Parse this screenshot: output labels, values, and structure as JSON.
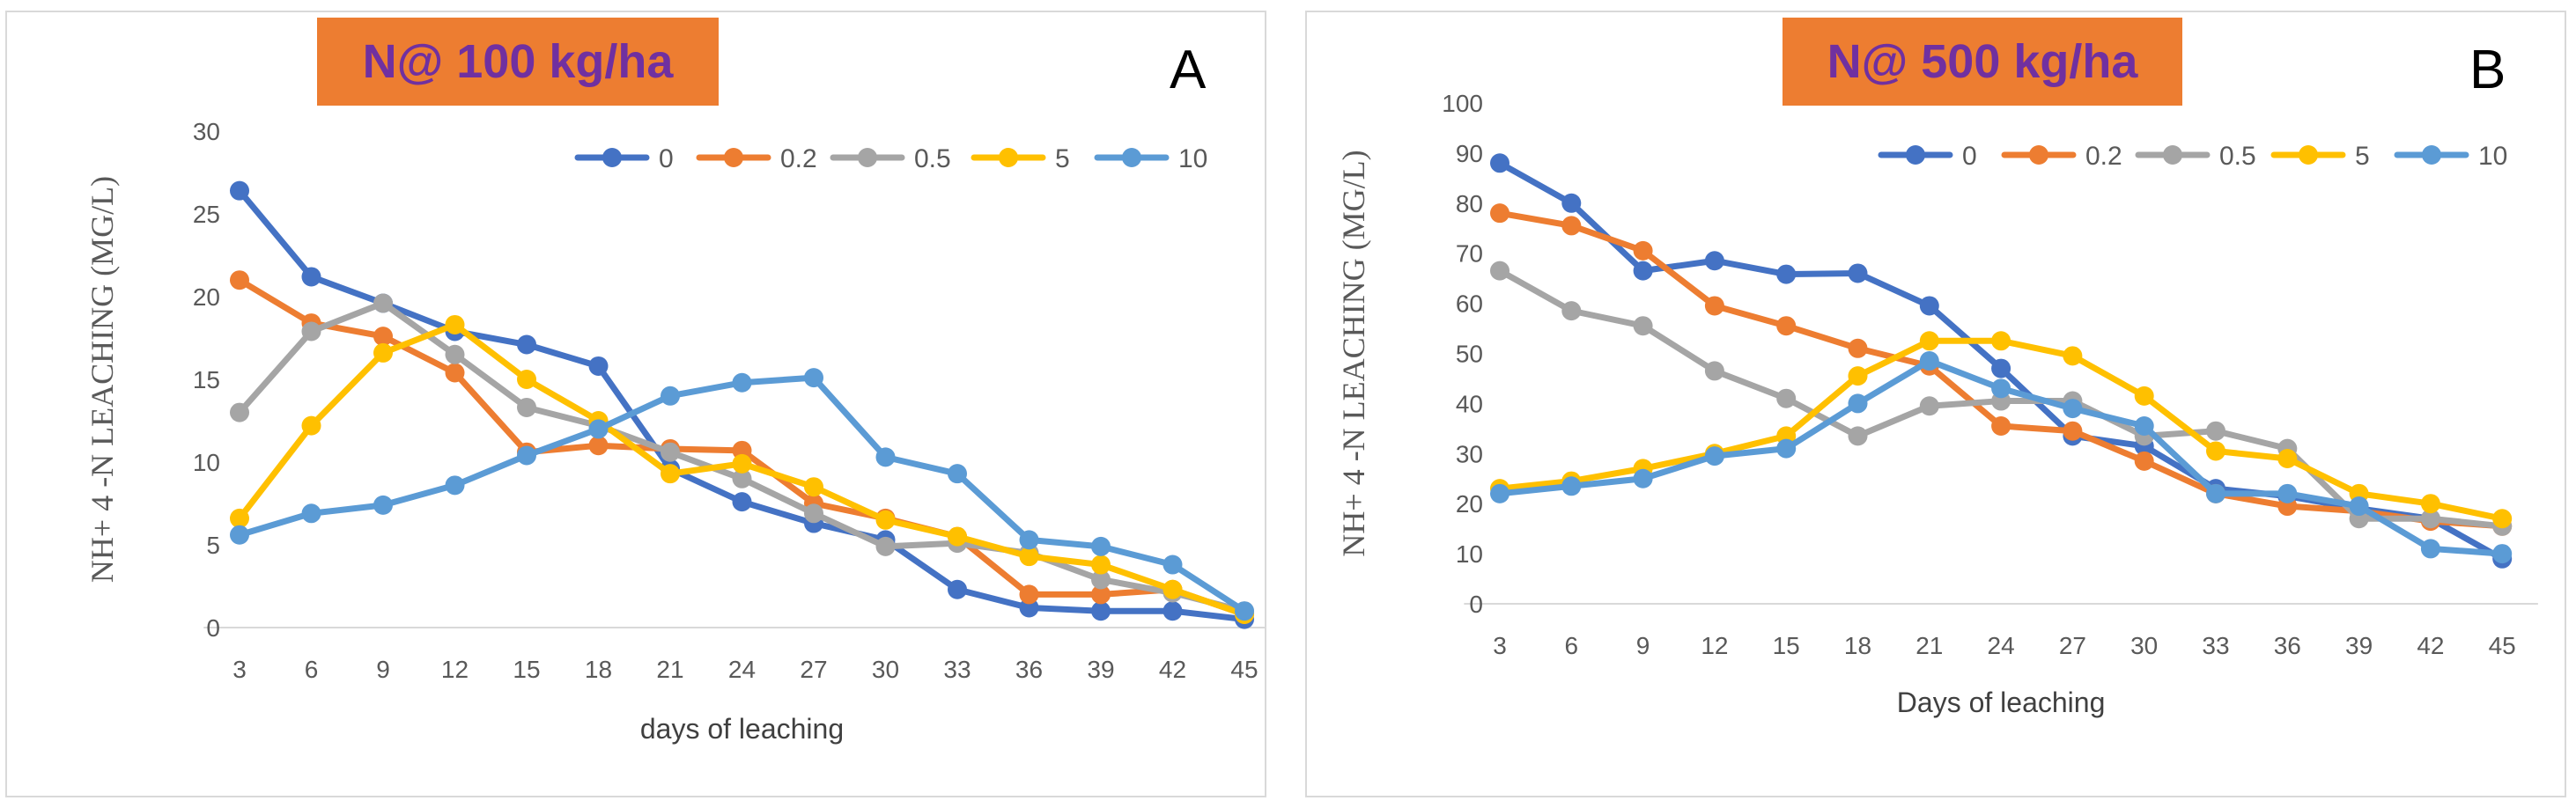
{
  "chart_data": [
    {
      "type": "line",
      "panel_letter": "A",
      "title": "N@ 100 kg/ha",
      "xlabel": "days of leaching",
      "ylabel": "NH+ 4 -N LEACHING (MG/L)",
      "categories": [
        "3",
        "6",
        "9",
        "12",
        "15",
        "18",
        "21",
        "24",
        "27",
        "30",
        "33",
        "36",
        "39",
        "42",
        "45"
      ],
      "ylim": [
        0,
        30
      ],
      "yticks": [
        0,
        5,
        10,
        15,
        20,
        25,
        30
      ],
      "legend_position": "top-right",
      "series": [
        {
          "name": "0",
          "color": "#4472c4",
          "values": [
            26.4,
            21.2,
            19.6,
            17.9,
            17.1,
            15.8,
            9.6,
            7.6,
            6.3,
            5.3,
            2.3,
            1.2,
            1.0,
            1.0,
            0.5
          ]
        },
        {
          "name": "0.2",
          "color": "#ed7d31",
          "values": [
            21.0,
            18.4,
            17.6,
            15.4,
            10.6,
            11.0,
            10.8,
            10.7,
            7.5,
            6.6,
            5.5,
            2.0,
            2.0,
            2.3,
            0.8
          ]
        },
        {
          "name": "0.5",
          "color": "#a5a5a5",
          "values": [
            13.0,
            17.9,
            19.6,
            16.5,
            13.3,
            12.2,
            10.6,
            9.0,
            6.9,
            4.9,
            5.1,
            4.5,
            2.9,
            2.1,
            1.0
          ]
        },
        {
          "name": "5",
          "color": "#ffc000",
          "values": [
            6.6,
            12.2,
            16.6,
            18.3,
            15.0,
            12.5,
            9.3,
            9.9,
            8.5,
            6.5,
            5.5,
            4.3,
            3.8,
            2.3,
            0.8
          ]
        },
        {
          "name": "10",
          "color": "#5b9bd5",
          "values": [
            5.6,
            6.9,
            7.4,
            8.6,
            10.4,
            12.0,
            14.0,
            14.8,
            15.1,
            10.3,
            9.3,
            5.3,
            4.9,
            3.8,
            1.0
          ]
        }
      ]
    },
    {
      "type": "line",
      "panel_letter": "B",
      "title": "N@ 500 kg/ha",
      "xlabel": "Days of leaching",
      "ylabel": "NH+ 4 -N LEACHING (MG/L)",
      "categories": [
        "3",
        "6",
        "9",
        "12",
        "15",
        "18",
        "21",
        "24",
        "27",
        "30",
        "33",
        "36",
        "39",
        "42",
        "45"
      ],
      "ylim": [
        0,
        100
      ],
      "yticks": [
        0,
        10,
        20,
        30,
        40,
        50,
        60,
        70,
        80,
        90,
        100
      ],
      "legend_position": "top-right",
      "series": [
        {
          "name": "0",
          "color": "#4472c4",
          "values": [
            88,
            80,
            66.5,
            68.5,
            65.8,
            66,
            59.5,
            47,
            33.5,
            31.5,
            23,
            21.5,
            19,
            17,
            9
          ]
        },
        {
          "name": "0.2",
          "color": "#ed7d31",
          "values": [
            78,
            75.5,
            70.5,
            59.5,
            55.5,
            51,
            47.5,
            35.5,
            34.5,
            28.5,
            22,
            19.5,
            18.5,
            16.5,
            15.5
          ]
        },
        {
          "name": "0.5",
          "color": "#a5a5a5",
          "values": [
            66.5,
            58.5,
            55.5,
            46.5,
            41,
            33.5,
            39.5,
            40.5,
            40.5,
            33.5,
            34.5,
            31,
            17,
            17,
            15.5
          ]
        },
        {
          "name": "5",
          "color": "#ffc000",
          "values": [
            23,
            24.5,
            27,
            30,
            33.5,
            45.5,
            52.5,
            52.5,
            49.5,
            41.5,
            30.5,
            29,
            22,
            20,
            17
          ]
        },
        {
          "name": "10",
          "color": "#5b9bd5",
          "values": [
            22,
            23.5,
            25,
            29.5,
            31,
            40,
            48.5,
            43,
            39,
            35.5,
            22,
            22,
            19.5,
            11,
            10
          ]
        }
      ]
    }
  ]
}
